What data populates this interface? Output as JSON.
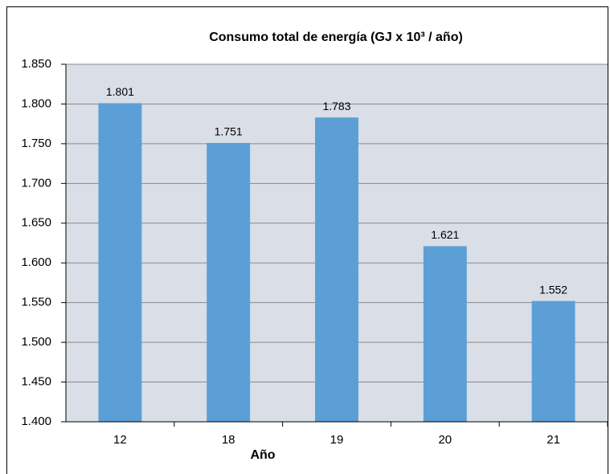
{
  "chart_data": {
    "type": "bar",
    "title": "Consumo total de energía (GJ x 10³ / año)",
    "x_label": "Año",
    "categories": [
      "12",
      "18",
      "19",
      "20",
      "21"
    ],
    "values": [
      1801,
      1751,
      1783,
      1621,
      1552
    ],
    "value_labels": [
      "1.801",
      "1.751",
      "1.783",
      "1.621",
      "1.552"
    ],
    "color": "#5b9fd6",
    "ylim": [
      1400,
      1850
    ],
    "yticks": [
      {
        "value": 1400,
        "label": "1.400"
      },
      {
        "value": 1450,
        "label": "1.450"
      },
      {
        "value": 1500,
        "label": "1.500"
      },
      {
        "value": 1550,
        "label": "1.550"
      },
      {
        "value": 1600,
        "label": "1.600"
      },
      {
        "value": 1650,
        "label": "1.650"
      },
      {
        "value": 1700,
        "label": "1.700"
      },
      {
        "value": 1750,
        "label": "1.750"
      },
      {
        "value": 1800,
        "label": "1.800"
      },
      {
        "value": 1850,
        "label": "1.850"
      }
    ],
    "grid": true
  }
}
